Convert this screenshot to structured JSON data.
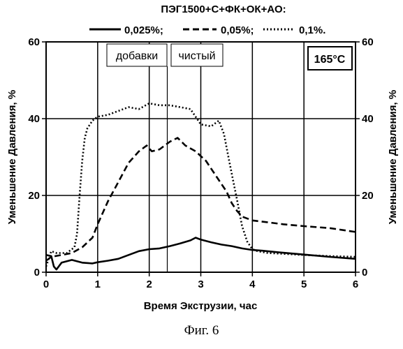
{
  "caption": "Фиг. 6",
  "chart_data": {
    "type": "line",
    "title": "ПЭГ1500+С+ФК+ОК+АО:",
    "xlabel": "Время Экструзии, час",
    "ylabel_left": "Уменьшение Давления, %",
    "ylabel_right": "Уменьшение Давления, %",
    "xlim": [
      0,
      6
    ],
    "ylim": [
      0,
      60
    ],
    "xticks": [
      "0",
      "1",
      "2",
      "3",
      "4",
      "5",
      "6"
    ],
    "yticks": [
      "0",
      "20",
      "40",
      "60"
    ],
    "grid": true,
    "legend_position": "top",
    "annotations": {
      "additives_label": "добавки",
      "clean_label": "чистый",
      "temperature": "165",
      "temperature_unit": "°C"
    },
    "markers_x": [
      2.35
    ],
    "series": [
      {
        "name": "0,025%;",
        "style": "solid",
        "x": [
          0,
          0.1,
          0.15,
          0.2,
          0.3,
          0.5,
          0.7,
          0.9,
          1.0,
          1.2,
          1.4,
          1.6,
          1.8,
          2.0,
          2.2,
          2.4,
          2.6,
          2.8,
          2.9,
          3.0,
          3.2,
          3.4,
          3.6,
          3.8,
          4.0,
          4.2,
          4.5,
          5.0,
          5.5,
          6.0
        ],
        "y": [
          4.5,
          4.2,
          1.5,
          0.7,
          2.5,
          3.2,
          2.5,
          2.3,
          2.6,
          3.0,
          3.5,
          4.5,
          5.5,
          6.0,
          6.2,
          6.8,
          7.5,
          8.3,
          9.0,
          8.5,
          7.8,
          7.2,
          6.8,
          6.2,
          5.8,
          5.6,
          5.2,
          4.6,
          4.0,
          3.5
        ]
      },
      {
        "name": "0,05%;",
        "style": "dashed",
        "x": [
          0,
          0.1,
          0.3,
          0.5,
          0.7,
          0.9,
          1.0,
          1.2,
          1.4,
          1.6,
          1.8,
          1.95,
          2.05,
          2.2,
          2.4,
          2.55,
          2.7,
          2.9,
          3.1,
          3.3,
          3.5,
          3.6,
          3.7,
          3.8,
          4.0,
          4.3,
          4.6,
          5.0,
          5.5,
          6.0
        ],
        "y": [
          3.0,
          4.0,
          4.5,
          5.0,
          6.5,
          9.0,
          12.5,
          18.5,
          23.5,
          28.5,
          31.5,
          33.0,
          31.5,
          32.0,
          34.0,
          35.0,
          33.0,
          31.5,
          29.0,
          25.0,
          21.0,
          18.0,
          16.0,
          14.5,
          13.5,
          13.0,
          12.5,
          12.0,
          11.5,
          10.5
        ]
      },
      {
        "name": "0,1%.",
        "style": "dotted",
        "x": [
          0,
          0.1,
          0.2,
          0.4,
          0.55,
          0.6,
          0.65,
          0.7,
          0.75,
          0.8,
          0.9,
          1.0,
          1.2,
          1.4,
          1.6,
          1.8,
          2.0,
          2.2,
          2.4,
          2.6,
          2.8,
          3.0,
          3.2,
          3.35,
          3.45,
          3.55,
          3.7,
          3.8,
          3.9,
          4.0,
          4.1,
          4.3,
          4.6,
          5.0,
          5.5,
          6.0
        ],
        "y": [
          1.5,
          5.5,
          5.0,
          5.0,
          6.5,
          10.0,
          20.0,
          29.0,
          35.0,
          37.5,
          39.5,
          40.5,
          41.0,
          42.0,
          43.0,
          42.5,
          44.0,
          43.5,
          43.5,
          43.0,
          42.5,
          38.5,
          38.0,
          39.5,
          36.0,
          29.0,
          19.0,
          12.0,
          8.0,
          6.0,
          5.5,
          5.0,
          4.8,
          4.5,
          4.2,
          4.0
        ]
      }
    ]
  }
}
